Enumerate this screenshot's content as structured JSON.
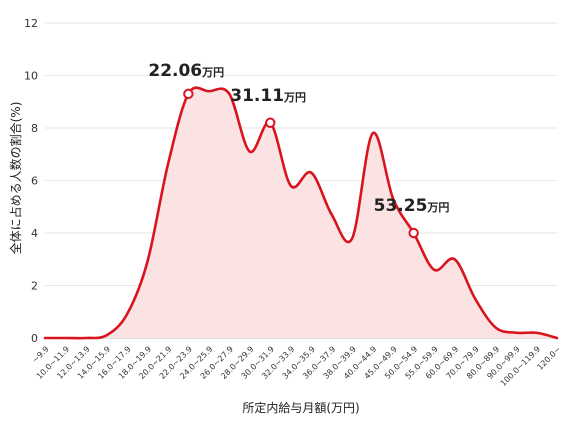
{
  "chart_data": {
    "type": "area",
    "xlabel": "所定内給与月額(万円)",
    "ylabel": "全体に占める人数の割合(%)",
    "ylim": [
      0,
      12
    ],
    "yticks": [
      0,
      2,
      4,
      6,
      8,
      10,
      12
    ],
    "grid": "horizontal",
    "colors": {
      "line": "#d9141e",
      "fill": "#fbe3e4",
      "grid": "#e6e6e6",
      "marker_fill": "#ffffff"
    },
    "categories": [
      "~9.9",
      "10.0~11.9",
      "12.0~13.9",
      "14.0~15.9",
      "16.0~17.9",
      "18.0~19.9",
      "20.0~21.9",
      "22.0~23.9",
      "24.0~25.9",
      "26.0~27.9",
      "28.0~29.9",
      "30.0~31.9",
      "32.0~33.9",
      "34.0~35.9",
      "36.0~37.9",
      "38.0~39.9",
      "40.0~44.9",
      "45.0~49.9",
      "50.0~54.9",
      "55.0~59.9",
      "60.0~69.9",
      "70.0~79.9",
      "80.0~89.9",
      "90.0~99.9",
      "100.0~119.9",
      "120.0~"
    ],
    "values": [
      0,
      0,
      0,
      0.1,
      0.9,
      2.9,
      6.6,
      9.3,
      9.4,
      9.3,
      7.1,
      8.2,
      5.8,
      6.3,
      4.7,
      3.8,
      7.8,
      5.3,
      4.0,
      2.6,
      3.0,
      1.5,
      0.4,
      0.2,
      0.2,
      0.0
    ],
    "annotations": [
      {
        "index": 7,
        "value": "22.06",
        "unit": "万円"
      },
      {
        "index": 11,
        "value": "31.11",
        "unit": "万円"
      },
      {
        "index": 18,
        "value": "53.25",
        "unit": "万円"
      }
    ]
  }
}
